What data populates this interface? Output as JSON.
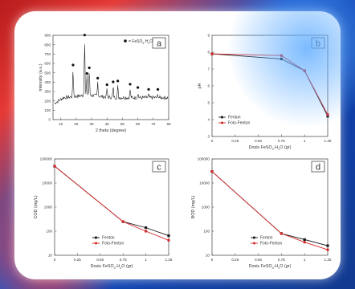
{
  "colors": {
    "fenton": "#1a1a1a",
    "foto": "#d62828",
    "xrd": "#222222",
    "grid": "#cccccc"
  },
  "chart_data": [
    {
      "panel_label": "a",
      "type": "line",
      "xlabel": "2 theta (degree)",
      "ylabel": "Intensity (a.u.)",
      "xlim": [
        5,
        80
      ],
      "ylim": [
        0,
        900
      ],
      "xticks": [
        10,
        20,
        30,
        40,
        50,
        60,
        70,
        80
      ],
      "yticks": [
        0,
        100,
        200,
        300,
        400,
        500,
        600,
        700,
        800,
        900
      ],
      "legend": {
        "marker": "●",
        "label": "= FeSO4.H2O",
        "position": "top-right"
      },
      "peaks": [
        {
          "x": 18,
          "y": 540
        },
        {
          "x": 25.5,
          "y": 860
        },
        {
          "x": 27,
          "y": 450
        },
        {
          "x": 28.5,
          "y": 510
        },
        {
          "x": 34,
          "y": 400
        },
        {
          "x": 40,
          "y": 330
        },
        {
          "x": 44,
          "y": 360
        },
        {
          "x": 47,
          "y": 370
        },
        {
          "x": 55,
          "y": 335
        },
        {
          "x": 60,
          "y": 300
        },
        {
          "x": 67,
          "y": 280
        },
        {
          "x": 73,
          "y": 280
        }
      ]
    },
    {
      "panel_label": "b",
      "type": "line",
      "xlabel": "Dosis FeSO4.H2O (gr)",
      "ylabel": "pH",
      "xlim": [
        0,
        1.25
      ],
      "ylim": [
        3,
        9
      ],
      "xticks": [
        0,
        0.25,
        0.5,
        0.75,
        1.0,
        1.25
      ],
      "yticks": [
        3,
        4,
        5,
        6,
        7,
        8,
        9
      ],
      "x": [
        0,
        0.75,
        1.0,
        1.25
      ],
      "series": [
        {
          "name": "Fenton",
          "values": [
            7.9,
            7.6,
            6.9,
            4.2
          ]
        },
        {
          "name": "Foto-Fenton",
          "values": [
            7.9,
            7.8,
            6.9,
            4.3
          ]
        }
      ],
      "legend_position": "bottom-left"
    },
    {
      "panel_label": "c",
      "type": "line",
      "xlabel": "Dosis FeSO4.H2O (gr)",
      "ylabel": "COD (mg/L)",
      "scale": "log",
      "xlim": [
        0,
        1.25
      ],
      "ylim": [
        10,
        100000
      ],
      "xticks": [
        0,
        0.25,
        0.5,
        0.75,
        1.0,
        1.25
      ],
      "yticks": [
        10,
        100,
        1000,
        10000,
        100000
      ],
      "x": [
        0,
        0.75,
        1.0,
        1.25
      ],
      "series": [
        {
          "name": "Fenton",
          "values": [
            50000,
            250,
            140,
            65
          ]
        },
        {
          "name": "Foto-Fenton",
          "values": [
            50000,
            250,
            100,
            42
          ]
        }
      ],
      "legend_position": "bottom-center"
    },
    {
      "panel_label": "d",
      "type": "line",
      "xlabel": "Dosis FeSO4.H2O (gr)",
      "ylabel": "BOD (mg/L)",
      "scale": "log",
      "xlim": [
        0,
        1.25
      ],
      "ylim": [
        10,
        100000
      ],
      "xticks": [
        0,
        0.25,
        0.5,
        0.75,
        1.0,
        1.25
      ],
      "yticks": [
        10,
        100,
        1000,
        10000,
        100000
      ],
      "x": [
        0,
        0.75,
        1.0,
        1.25
      ],
      "series": [
        {
          "name": "Fenton",
          "values": [
            30000,
            80,
            45,
            25
          ]
        },
        {
          "name": "Foto-Fenton",
          "values": [
            30000,
            80,
            35,
            17
          ]
        }
      ],
      "legend_position": "bottom-center"
    }
  ]
}
